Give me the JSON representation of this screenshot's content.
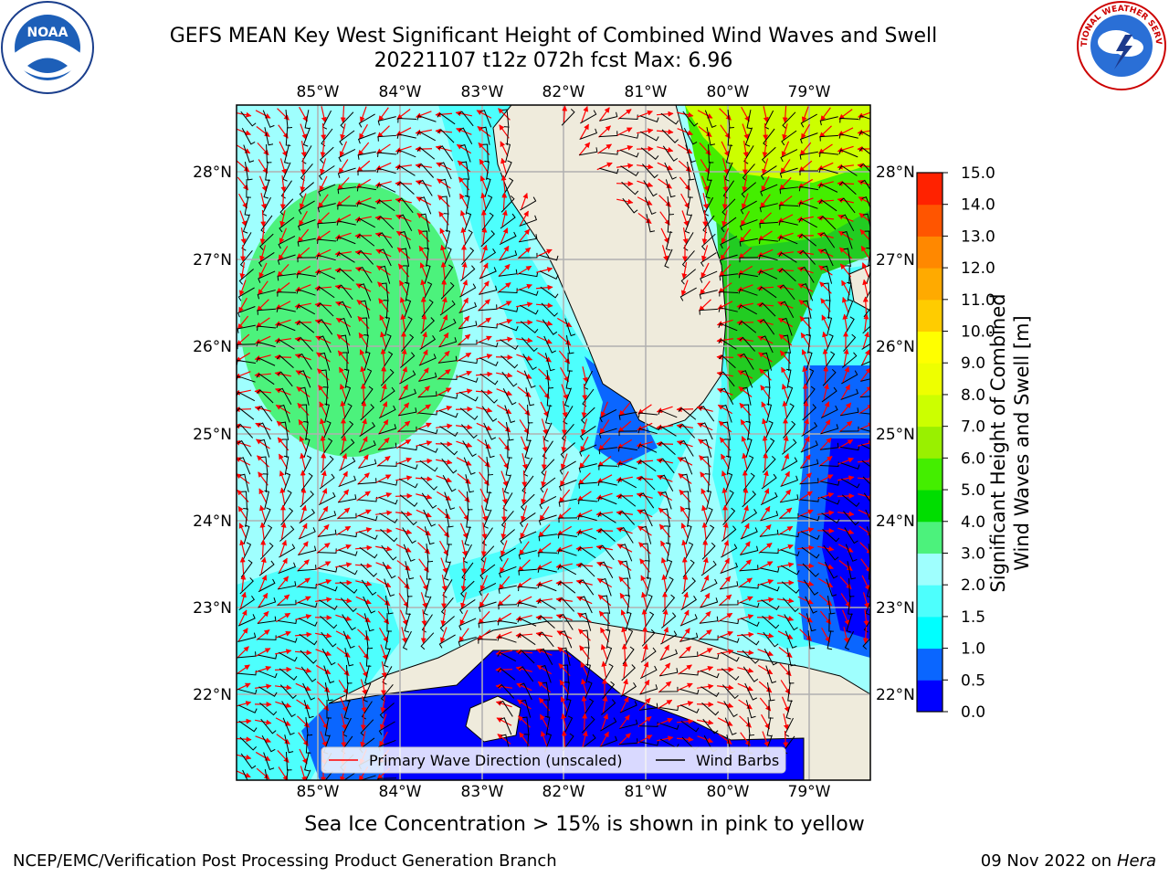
{
  "title": {
    "line1": "GEFS MEAN Key West Significant Height of Combined Wind Waves and Swell",
    "line2": "20221107 t12z 072h fcst   Max: 6.96"
  },
  "logos": {
    "left": {
      "text": "NOAA",
      "ring": "NATIONAL OCEANIC AND ATMOSPHERIC ADMINISTRATION · U.S. DEPARTMENT OF COMMERCE"
    },
    "right": {
      "ring": "NATIONAL WEATHER SERVICE"
    }
  },
  "map": {
    "lon_labels": [
      "85°W",
      "84°W",
      "83°W",
      "82°W",
      "81°W",
      "80°W",
      "79°W"
    ],
    "lat_labels": [
      "28°N",
      "27°N",
      "26°N",
      "25°N",
      "24°N",
      "23°N",
      "22°N"
    ],
    "legend": {
      "wave": "Primary Wave Direction (unscaled)",
      "wind": "Wind Barbs"
    },
    "colors": {
      "land": "#efebdc",
      "light_cyan": "#9ffffe",
      "cyan": "#4dfffd",
      "green": "#4cf27c",
      "blue": "#0044ff",
      "dark_blue": "#0000ff",
      "yellow_green": "#ccff00",
      "grid": "#b0b0b0",
      "arrow": "#ff0000",
      "barb": "#000000"
    }
  },
  "colorbar": {
    "label_line1": "Significant Height of Combined",
    "label_line2": "Wind Waves and Swell [m]",
    "ticks": [
      "0.0",
      "0.5",
      "1.0",
      "1.5",
      "2.0",
      "3.0",
      "4.0",
      "5.0",
      "6.0",
      "7.0",
      "8.0",
      "9.0",
      "10.0",
      "11.0",
      "12.0",
      "13.0",
      "14.0",
      "15.0"
    ],
    "colors": [
      "#0000ff",
      "#0a66ff",
      "#00ffff",
      "#4dfffd",
      "#9ffffe",
      "#4cf27c",
      "#00dd00",
      "#44ee00",
      "#99f000",
      "#ccff00",
      "#eeff00",
      "#ffff00",
      "#ffcc00",
      "#ffaa00",
      "#ff8800",
      "#ff5500",
      "#ff2200"
    ]
  },
  "footer": {
    "note": "Sea Ice Concentration > 15% is shown in pink to yellow",
    "left": "NCEP/EMC/Verification Post Processing Product Generation Branch",
    "right_date": "09 Nov 2022 on",
    "right_host": "Hera"
  }
}
